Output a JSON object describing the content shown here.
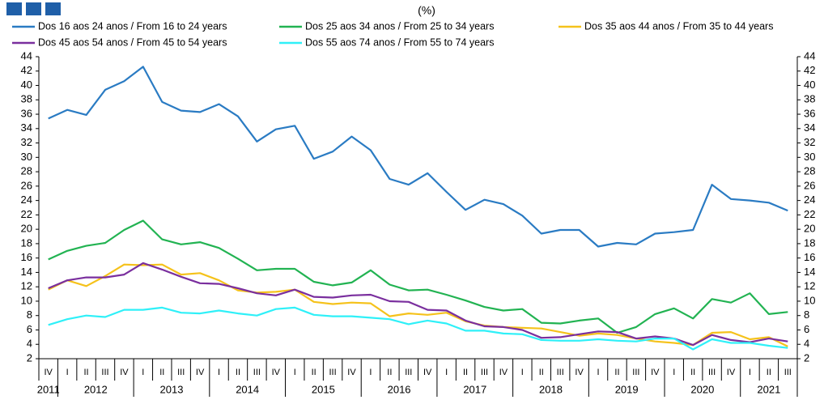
{
  "chart_data": {
    "type": "line",
    "subtitle": "(%)",
    "categories": [
      "IV",
      "I",
      "II",
      "III",
      "IV",
      "I",
      "II",
      "III",
      "IV",
      "I",
      "II",
      "III",
      "IV",
      "I",
      "II",
      "III",
      "IV",
      "I",
      "II",
      "III",
      "IV",
      "I",
      "II",
      "III",
      "IV",
      "I",
      "II",
      "III",
      "IV",
      "I",
      "II",
      "III",
      "IV",
      "I",
      "II",
      "III",
      "IV",
      "I",
      "II",
      "III"
    ],
    "years": [
      "2011",
      "2012",
      "2013",
      "2014",
      "2015",
      "2016",
      "2017",
      "2018",
      "2019",
      "2020",
      "2021"
    ],
    "series": [
      {
        "name": "Dos 16 aos 24 anos / From 16 to 24 years",
        "color": "#2a7bc3",
        "values": [
          35.4,
          36.6,
          35.9,
          39.4,
          40.6,
          42.6,
          37.7,
          36.5,
          36.3,
          37.4,
          35.7,
          32.2,
          33.9,
          34.4,
          29.8,
          30.8,
          32.9,
          31.0,
          27.0,
          26.2,
          27.8,
          25.2,
          22.7,
          24.1,
          23.5,
          21.9,
          19.4,
          19.9,
          19.9,
          17.6,
          18.1,
          17.9,
          19.4,
          19.6,
          19.9,
          26.2,
          24.2,
          24.0,
          23.7,
          22.6
        ]
      },
      {
        "name": "Dos 25 aos 34 anos / From 25 to 34 years",
        "color": "#22b352",
        "values": [
          15.8,
          17.0,
          17.7,
          18.1,
          19.9,
          21.2,
          18.6,
          17.9,
          18.2,
          17.4,
          15.9,
          14.3,
          14.5,
          14.5,
          12.7,
          12.2,
          12.6,
          14.3,
          12.3,
          11.5,
          11.6,
          10.9,
          10.1,
          9.2,
          8.7,
          8.9,
          7.0,
          6.9,
          7.3,
          7.6,
          5.6,
          6.4,
          8.2,
          9.0,
          7.6,
          10.3,
          9.8,
          11.1,
          8.2,
          8.5
        ]
      },
      {
        "name": "Dos 35 aos 44 anos / From 35 to 44 years",
        "color": "#f5c21b",
        "values": [
          11.6,
          12.9,
          12.1,
          13.5,
          15.1,
          15.0,
          15.1,
          13.7,
          13.9,
          12.9,
          11.5,
          11.2,
          11.3,
          11.6,
          9.9,
          9.6,
          9.8,
          9.7,
          7.9,
          8.3,
          8.1,
          8.4,
          7.2,
          6.6,
          6.4,
          6.3,
          6.2,
          5.7,
          5.2,
          5.5,
          5.3,
          4.8,
          4.4,
          4.2,
          3.9,
          5.6,
          5.7,
          4.7,
          5.0,
          3.7
        ]
      },
      {
        "name": "Dos 45 aos 54 anos / From 45 to 54 years",
        "color": "#7a2f9e",
        "values": [
          11.8,
          12.9,
          13.3,
          13.3,
          13.7,
          15.3,
          14.4,
          13.4,
          12.5,
          12.4,
          11.8,
          11.1,
          10.8,
          11.6,
          10.6,
          10.5,
          10.8,
          10.9,
          10.0,
          9.9,
          8.8,
          8.7,
          7.3,
          6.5,
          6.4,
          6.0,
          4.9,
          5.0,
          5.4,
          5.8,
          5.7,
          4.8,
          5.1,
          4.8,
          3.9,
          5.3,
          4.6,
          4.3,
          4.8,
          4.4
        ]
      },
      {
        "name": "Dos 55 aos 74 anos / From 55 to 74 years",
        "color": "#2ff0f8",
        "values": [
          6.7,
          7.5,
          8.0,
          7.8,
          8.8,
          8.8,
          9.1,
          8.4,
          8.3,
          8.7,
          8.3,
          8.0,
          8.9,
          9.1,
          8.1,
          7.9,
          7.9,
          7.7,
          7.5,
          6.8,
          7.3,
          6.9,
          5.9,
          5.9,
          5.5,
          5.4,
          4.6,
          4.5,
          4.5,
          4.7,
          4.5,
          4.4,
          4.8,
          4.8,
          3.3,
          4.7,
          4.2,
          4.2,
          3.8,
          3.5
        ]
      }
    ],
    "ylim": [
      2,
      44
    ],
    "yticks": [
      2,
      4,
      6,
      8,
      10,
      12,
      14,
      16,
      18,
      20,
      22,
      24,
      26,
      28,
      30,
      32,
      34,
      36,
      38,
      40,
      42,
      44
    ],
    "y2lim": [
      2,
      44
    ],
    "y2ticks": [
      2,
      4,
      6,
      8,
      10,
      12,
      14,
      16,
      18,
      20,
      22,
      24,
      26,
      28,
      30,
      32,
      34,
      36,
      38,
      40,
      42,
      44
    ],
    "grid": false
  }
}
